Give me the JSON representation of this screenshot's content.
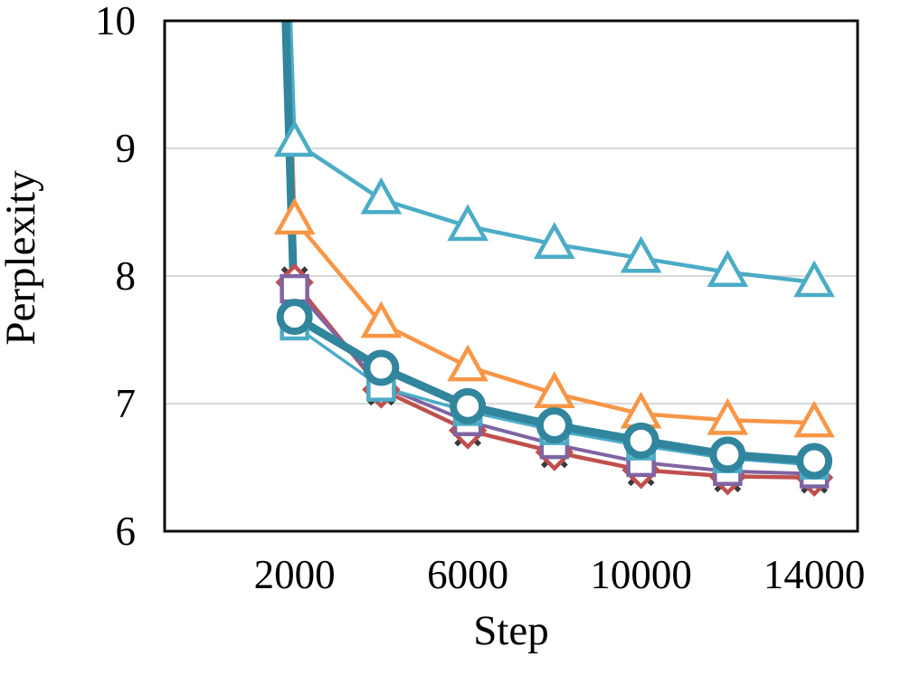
{
  "figure": {
    "background": "#FFFFFF",
    "border_color": "#0D0D0D",
    "gridline_color": "#D9D9D9",
    "text_color": "#000000"
  },
  "chart_data": {
    "type": "line",
    "title": "",
    "xlabel": "Step",
    "ylabel": "Perplexity",
    "xlim": [
      -1000,
      15000
    ],
    "ylim": [
      6,
      10
    ],
    "x_ticks": [
      "2000",
      "6000",
      "10000",
      "14000"
    ],
    "x_tick_values": [
      2000,
      6000,
      10000,
      14000
    ],
    "y_ticks": [
      "6",
      "7",
      "8",
      "9",
      "10"
    ],
    "y_tick_values": [
      6,
      7,
      8,
      9,
      10
    ],
    "grid": "horizontal-only",
    "legend_position": "none",
    "x": [
      2000,
      4000,
      6000,
      8000,
      10000,
      12000,
      14000
    ],
    "series": [
      {
        "name": "dark-x-markers",
        "color": "#3B3B3B",
        "marker": "x",
        "has_line": false,
        "line_width": 0,
        "values": [
          7.97,
          7.09,
          6.77,
          6.6,
          6.46,
          6.41,
          6.4
        ],
        "lead_in": []
      },
      {
        "name": "red-diamond",
        "color": "#C0504D",
        "marker": "diamond",
        "has_line": true,
        "line_width": 4.5,
        "values": [
          7.95,
          7.11,
          6.79,
          6.62,
          6.48,
          6.43,
          6.42
        ],
        "lead_in": [
          [
            1430,
            30
          ],
          [
            1770,
            10.5
          ]
        ]
      },
      {
        "name": "purple-square",
        "color": "#8064A2",
        "marker": "square",
        "has_line": true,
        "line_width": 4,
        "values": [
          7.9,
          7.14,
          6.86,
          6.68,
          6.54,
          6.47,
          6.45
        ],
        "lead_in": [
          [
            1440,
            30
          ],
          [
            1780,
            10.5
          ]
        ]
      },
      {
        "name": "lightblue-square",
        "color": "#4BACC6",
        "marker": "square",
        "has_line": true,
        "line_width": 3.5,
        "values": [
          7.61,
          7.13,
          6.94,
          6.79,
          6.67,
          6.57,
          6.52
        ],
        "lead_in": [
          [
            1380,
            30
          ],
          [
            1730,
            10.5
          ]
        ]
      },
      {
        "name": "orange-triangle",
        "color": "#F79646",
        "marker": "triangle",
        "has_line": true,
        "line_width": 4.5,
        "values": [
          8.44,
          7.63,
          7.29,
          7.08,
          6.92,
          6.87,
          6.85
        ],
        "lead_in": [
          [
            1420,
            30
          ],
          [
            1760,
            11.0
          ]
        ]
      },
      {
        "name": "lightblue-triangle",
        "color": "#4BACC6",
        "marker": "triangle",
        "has_line": true,
        "line_width": 4.5,
        "values": [
          9.05,
          8.6,
          8.39,
          8.25,
          8.14,
          8.03,
          7.95
        ],
        "lead_in": [
          [
            1460,
            30
          ],
          [
            1800,
            11.0
          ]
        ]
      },
      {
        "name": "teal-circle-bold",
        "color": "#31859C",
        "marker": "circle",
        "has_line": true,
        "line_width": 9,
        "values": [
          7.68,
          7.28,
          6.98,
          6.83,
          6.71,
          6.6,
          6.55
        ],
        "lead_in": [
          [
            1400,
            30
          ],
          [
            1750,
            10.5
          ]
        ]
      }
    ]
  }
}
